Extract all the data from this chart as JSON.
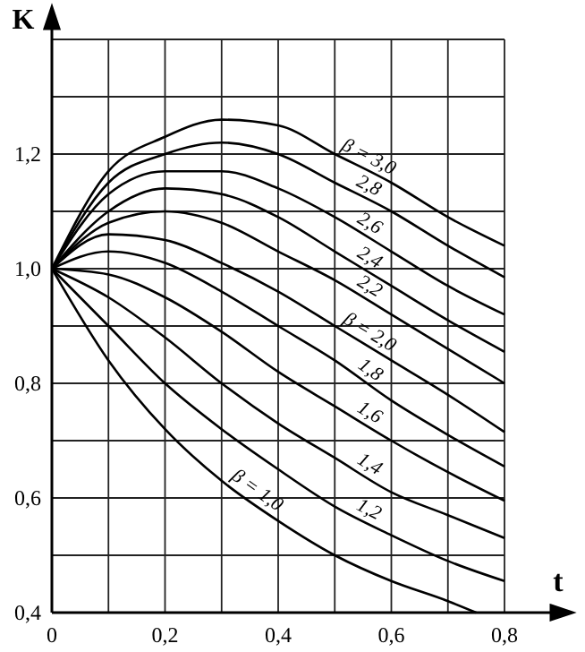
{
  "chart_data": {
    "type": "line",
    "xlabel": "t",
    "ylabel": "K",
    "x": [
      0,
      0.1,
      0.2,
      0.3,
      0.4,
      0.5,
      0.6,
      0.7,
      0.8
    ],
    "xlim": [
      0,
      0.8
    ],
    "ylim": [
      0.4,
      1.4
    ],
    "xticks": [
      0,
      {
        "value": 0.1,
        "label": null
      },
      {
        "value": 0.2,
        "label": "0,2"
      },
      {
        "value": 0.3,
        "label": null
      },
      {
        "value": 0.4,
        "label": "0,4"
      },
      {
        "value": 0.5,
        "label": null
      },
      {
        "value": 0.6,
        "label": "0,6"
      },
      {
        "value": 0.7,
        "label": null
      },
      {
        "value": 0.8,
        "label": "0,8"
      }
    ],
    "yticks": [
      {
        "value": 0.4,
        "label": "0,4"
      },
      {
        "value": 0.5,
        "label": null
      },
      {
        "value": 0.6,
        "label": "0,6"
      },
      {
        "value": 0.7,
        "label": null
      },
      {
        "value": 0.8,
        "label": "0,8"
      },
      {
        "value": 0.9,
        "label": null
      },
      {
        "value": 1.0,
        "label": "1,0"
      },
      {
        "value": 1.1,
        "label": null
      },
      {
        "value": 1.2,
        "label": "1,2"
      },
      {
        "value": 1.3,
        "label": null
      },
      {
        "value": 1.4,
        "label": null
      }
    ],
    "grid": true,
    "marker": "none",
    "line_style": "solid",
    "series": [
      {
        "name": "β = 3,0",
        "color": "#000000",
        "values": [
          1.0,
          1.17,
          1.23,
          1.26,
          1.25,
          1.2,
          1.15,
          1.09,
          1.04
        ]
      },
      {
        "name": "2,8",
        "color": "#000000",
        "values": [
          1.0,
          1.15,
          1.2,
          1.22,
          1.2,
          1.15,
          1.1,
          1.04,
          0.985
        ]
      },
      {
        "name": "2,6",
        "color": "#000000",
        "values": [
          1.0,
          1.13,
          1.17,
          1.17,
          1.14,
          1.09,
          1.03,
          0.97,
          0.92
        ]
      },
      {
        "name": "2,4",
        "color": "#000000",
        "values": [
          1.0,
          1.1,
          1.14,
          1.13,
          1.09,
          1.03,
          0.97,
          0.91,
          0.855
        ]
      },
      {
        "name": "2,2",
        "color": "#000000",
        "values": [
          1.0,
          1.08,
          1.1,
          1.08,
          1.03,
          0.98,
          0.92,
          0.86,
          0.8
        ]
      },
      {
        "name": "β = 2,0",
        "color": "#000000",
        "values": [
          1.0,
          1.06,
          1.05,
          1.01,
          0.96,
          0.9,
          0.84,
          0.78,
          0.715
        ]
      },
      {
        "name": "1,8",
        "color": "#000000",
        "values": [
          1.0,
          1.03,
          1.01,
          0.96,
          0.9,
          0.84,
          0.77,
          0.71,
          0.655
        ]
      },
      {
        "name": "1,6",
        "color": "#000000",
        "values": [
          1.0,
          0.99,
          0.95,
          0.89,
          0.82,
          0.76,
          0.7,
          0.645,
          0.595
        ]
      },
      {
        "name": "1,4",
        "color": "#000000",
        "values": [
          1.0,
          0.95,
          0.88,
          0.8,
          0.73,
          0.67,
          0.61,
          0.57,
          0.53
        ]
      },
      {
        "name": "1,2",
        "color": "#000000",
        "values": [
          1.0,
          0.9,
          0.8,
          0.72,
          0.65,
          0.585,
          0.535,
          0.49,
          0.455
        ]
      },
      {
        "name": "β = 1,0",
        "color": "#000000",
        "x": [
          0,
          0.1,
          0.2,
          0.3,
          0.4,
          0.5,
          0.6,
          0.7,
          0.75
        ],
        "values": [
          1.0,
          0.84,
          0.72,
          0.63,
          0.56,
          0.5,
          0.455,
          0.42,
          0.4
        ]
      }
    ]
  }
}
